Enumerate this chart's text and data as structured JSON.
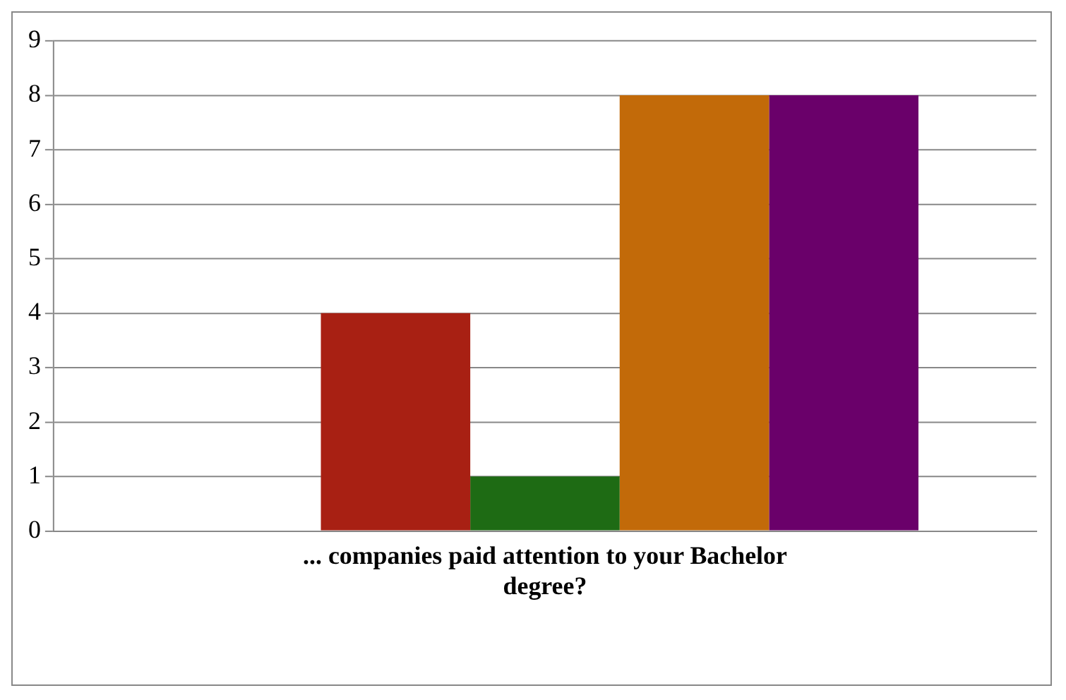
{
  "chart_data": {
    "type": "bar",
    "categories": [
      "... companies paid attention to your Bachelor degree?"
    ],
    "series": [
      {
        "color": "#4f81bd",
        "values": [
          0
        ]
      },
      {
        "color": "#a82013",
        "values": [
          4
        ]
      },
      {
        "color": "#1e6b14",
        "values": [
          1
        ]
      },
      {
        "color": "#c26a09",
        "values": [
          8
        ]
      },
      {
        "color": "#6a006a",
        "values": [
          8
        ]
      }
    ],
    "ylim": [
      0,
      9
    ],
    "yticks": [
      0,
      1,
      2,
      3,
      4,
      5,
      6,
      7,
      8,
      9
    ],
    "grid": "y",
    "legend": false
  }
}
